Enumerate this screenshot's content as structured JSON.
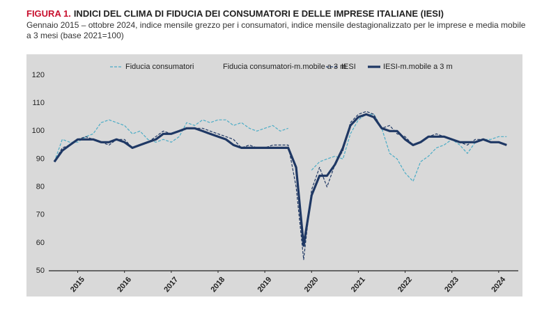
{
  "chart_data": {
    "type": "line",
    "figure_label": "FIGURA 1.",
    "title": "INDICI DEL CLIMA DI FIDUCIA DEI CONSUMATORI E DELLE IMPRESE ITALIANE (IESI)",
    "subtitle": "Gennaio 2015 – ottobre 2024, indice mensile grezzo per i consumatori, indice mensile destagionalizzato per le imprese e media mobile a 3 mesi (base 2021=100)",
    "x": [
      2015,
      2015.17,
      2015.33,
      2015.5,
      2015.67,
      2015.83,
      2016,
      2016.17,
      2016.33,
      2016.5,
      2016.67,
      2016.83,
      2017,
      2017.17,
      2017.33,
      2017.5,
      2017.67,
      2017.83,
      2018,
      2018.17,
      2018.33,
      2018.5,
      2018.67,
      2018.83,
      2019,
      2019.17,
      2019.33,
      2019.5,
      2019.67,
      2019.83,
      2020,
      2020.17,
      2020.33,
      2020.5,
      2020.67,
      2020.83,
      2021,
      2021.17,
      2021.33,
      2021.5,
      2021.67,
      2021.83,
      2022,
      2022.17,
      2022.33,
      2022.5,
      2022.67,
      2022.83,
      2023,
      2023.17,
      2023.33,
      2023.5,
      2023.67,
      2023.83,
      2024,
      2024.17,
      2024.33,
      2024.5,
      2024.67
    ],
    "series": [
      {
        "name": "Fiducia consumatori",
        "color": "#4bacc6",
        "style": "dashed",
        "values": [
          89,
          97,
          96,
          96,
          98,
          99,
          103,
          104,
          103,
          102,
          99,
          100,
          97,
          96,
          97,
          96,
          98,
          103,
          102,
          104,
          103,
          104,
          104,
          102,
          103,
          101,
          100,
          101,
          102,
          100,
          101,
          null,
          null,
          86,
          89,
          90,
          91,
          90,
          99,
          104,
          106,
          106,
          101,
          92,
          90,
          85,
          82,
          89,
          91,
          94,
          95,
          97,
          95,
          92,
          96,
          97,
          97,
          98,
          98
        ]
      },
      {
        "name": "Fiducia consumatori-m.mobile a 3 m",
        "color": "#d9d9d9",
        "style": "solid",
        "values": [
          90,
          95,
          96,
          96,
          97,
          99,
          102,
          103,
          103,
          102,
          100,
          99,
          97,
          96,
          96,
          96,
          97,
          101,
          102,
          103,
          103,
          104,
          103,
          102,
          102,
          101,
          100,
          101,
          101,
          100,
          100,
          null,
          null,
          86,
          88,
          90,
          90,
          92,
          97,
          103,
          105,
          106,
          102,
          94,
          90,
          87,
          86,
          87,
          90,
          93,
          95,
          96,
          95,
          94,
          95,
          96,
          97,
          98,
          98
        ]
      },
      {
        "name": "IESI",
        "color": "#1f3864",
        "style": "dashed",
        "values": [
          89,
          94,
          95,
          97,
          98,
          97,
          96,
          95,
          97,
          97,
          94,
          95,
          96,
          98,
          100,
          99,
          100,
          101,
          101,
          101,
          100,
          99,
          98,
          97,
          94,
          95,
          94,
          94,
          95,
          95,
          95,
          80,
          54,
          79,
          87,
          80,
          88,
          93,
          103,
          106,
          107,
          106,
          101,
          102,
          99,
          98,
          95,
          96,
          98,
          99,
          98,
          97,
          96,
          95,
          97,
          97,
          96,
          96,
          95
        ]
      },
      {
        "name": "IESI-m.mobile a 3 m",
        "color": "#1f3864",
        "style": "thick",
        "values": [
          89,
          93,
          95,
          97,
          97,
          97,
          96,
          96,
          97,
          96,
          94,
          95,
          96,
          97,
          99,
          99,
          100,
          101,
          101,
          100,
          99,
          98,
          97,
          95,
          94,
          94,
          94,
          94,
          94,
          94,
          94,
          87,
          59,
          77,
          84,
          84,
          88,
          94,
          102,
          105,
          106,
          105,
          101,
          100,
          100,
          97,
          95,
          96,
          98,
          98,
          98,
          97,
          96,
          96,
          96,
          97,
          96,
          96,
          95
        ]
      }
    ],
    "xlim": [
      2015,
      2024.83
    ],
    "xticks": [
      {
        "value": 2015.5,
        "label": "2015"
      },
      {
        "value": 2016.5,
        "label": "2016"
      },
      {
        "value": 2017.5,
        "label": "2017"
      },
      {
        "value": 2018.5,
        "label": "2018"
      },
      {
        "value": 2019.5,
        "label": "2019"
      },
      {
        "value": 2020.5,
        "label": "2020"
      },
      {
        "value": 2021.5,
        "label": "2021"
      },
      {
        "value": 2022.5,
        "label": "2022"
      },
      {
        "value": 2023.5,
        "label": "2023"
      },
      {
        "value": 2024.5,
        "label": "2024"
      }
    ],
    "ylim": [
      50,
      120
    ],
    "yticks": [
      50,
      60,
      70,
      80,
      90,
      100,
      110,
      120
    ],
    "grid": false,
    "legend": "top"
  }
}
